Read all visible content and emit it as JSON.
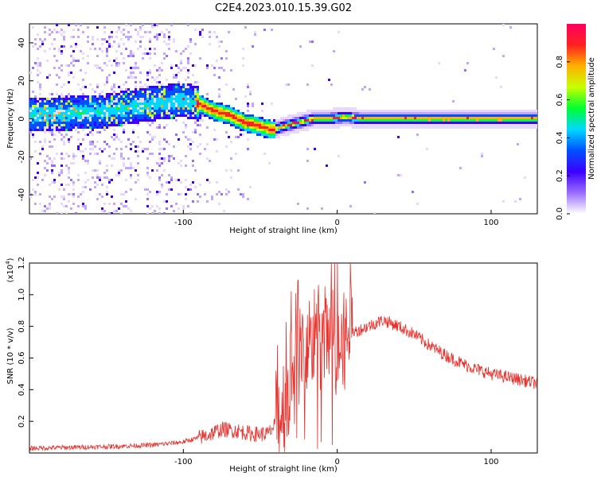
{
  "title": "C2E4.2023.010.15.39.G02",
  "chart_data": [
    {
      "type": "heatmap",
      "xlabel": "Height of straight line (km)",
      "ylabel": "Frequency (Hz)",
      "xlim": [
        -200,
        130
      ],
      "ylim": [
        -50,
        50
      ],
      "xticks": [
        {
          "v": -100,
          "label": "-100"
        },
        {
          "v": 0,
          "label": "0"
        },
        {
          "v": 100,
          "label": "100"
        }
      ],
      "yticks": [
        {
          "v": -40,
          "label": "-40"
        },
        {
          "v": -20,
          "label": "-20"
        },
        {
          "v": 0,
          "label": "0"
        },
        {
          "v": 20,
          "label": "20"
        },
        {
          "v": 40,
          "label": "40"
        }
      ],
      "ridge": [
        [
          -200,
          2
        ],
        [
          -150,
          4
        ],
        [
          -120,
          8
        ],
        [
          -100,
          10
        ],
        [
          -90,
          8
        ],
        [
          -80,
          4
        ],
        [
          -70,
          2
        ],
        [
          -60,
          -2
        ],
        [
          -50,
          -4
        ],
        [
          -42,
          -6
        ],
        [
          -35,
          -4
        ],
        [
          -25,
          -2
        ],
        [
          -15,
          0
        ],
        [
          -5,
          0
        ],
        [
          5,
          1
        ],
        [
          15,
          0
        ],
        [
          40,
          0
        ],
        [
          80,
          0
        ],
        [
          130,
          0
        ]
      ],
      "colorbar": {
        "label": "Normalized spectral amplitude",
        "range": [
          0,
          1
        ],
        "ticks": [
          {
            "v": 0.0,
            "label": "0.0"
          },
          {
            "v": 0.2,
            "label": "0.2"
          },
          {
            "v": 0.4,
            "label": "0.4"
          },
          {
            "v": 0.6,
            "label": "0.6"
          },
          {
            "v": 0.8,
            "label": "0.8"
          }
        ],
        "colors": [
          "#ffffff",
          "#9a6cff",
          "#3b00ff",
          "#0050ff",
          "#00d8ff",
          "#00ff30",
          "#c8ff00",
          "#ffb000",
          "#ff2020",
          "#ff0060"
        ]
      }
    },
    {
      "type": "line",
      "xlabel": "Height of straight line (km)",
      "ylabel": "SNR (10 * v/v)",
      "y_multiplier": "(x10",
      "y_multiplier_exp": "4",
      "y_multiplier_close": ")",
      "xlim": [
        -200,
        130
      ],
      "ylim": [
        0,
        1.2
      ],
      "xticks": [
        {
          "v": -100,
          "label": "-100"
        },
        {
          "v": 0,
          "label": "0"
        },
        {
          "v": 100,
          "label": "100"
        }
      ],
      "yticks": [
        {
          "v": 0.2,
          "label": "0.2"
        },
        {
          "v": 0.4,
          "label": "0.4"
        },
        {
          "v": 0.6,
          "label": "0.6"
        },
        {
          "v": 0.8,
          "label": "0.8"
        },
        {
          "v": 1.0,
          "label": "1.0"
        },
        {
          "v": 1.2,
          "label": "1.2"
        }
      ],
      "color": "#e8312c",
      "envelope": [
        [
          -200,
          0.03
        ],
        [
          -150,
          0.04
        ],
        [
          -120,
          0.05
        ],
        [
          -100,
          0.07
        ],
        [
          -85,
          0.11
        ],
        [
          -75,
          0.15
        ],
        [
          -65,
          0.14
        ],
        [
          -55,
          0.12
        ],
        [
          -45,
          0.12
        ],
        [
          -40,
          0.18
        ],
        [
          -35,
          0.3
        ],
        [
          -30,
          0.45
        ],
        [
          -25,
          0.6
        ],
        [
          -20,
          0.65
        ],
        [
          -15,
          0.72
        ],
        [
          -10,
          0.72
        ],
        [
          -5,
          0.72
        ],
        [
          0,
          0.7
        ],
        [
          5,
          0.72
        ],
        [
          10,
          0.76
        ],
        [
          20,
          0.8
        ],
        [
          30,
          0.84
        ],
        [
          40,
          0.8
        ],
        [
          50,
          0.75
        ],
        [
          60,
          0.68
        ],
        [
          70,
          0.62
        ],
        [
          80,
          0.57
        ],
        [
          90,
          0.53
        ],
        [
          100,
          0.5
        ],
        [
          110,
          0.48
        ],
        [
          120,
          0.46
        ],
        [
          130,
          0.44
        ]
      ]
    }
  ]
}
